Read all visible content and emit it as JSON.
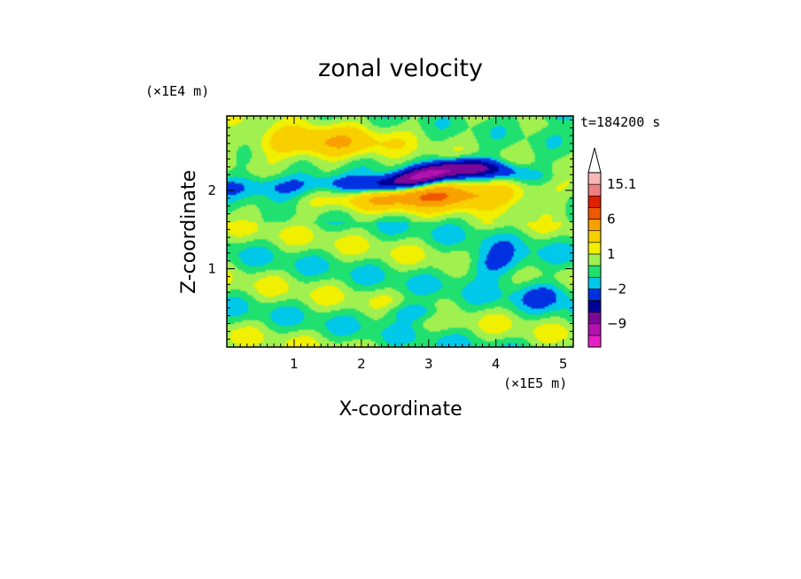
{
  "chart_data": {
    "type": "heatmap",
    "title": "zonal velocity",
    "xlabel": "X-coordinate",
    "ylabel": "Z-coordinate",
    "x_unit_label": "(×1E5 m)",
    "y_unit_label": "(×1E4 m)",
    "time_label": "t=184200 s",
    "xlim": [
      0,
      5.15
    ],
    "ylim": [
      0,
      2.95
    ],
    "x_ticks": [
      "1",
      "2",
      "3",
      "4",
      "5"
    ],
    "y_ticks": [
      "1",
      "2"
    ],
    "colorbar_labels": [
      "15.1",
      "6",
      "1",
      "−2",
      "−9"
    ],
    "colorbar": {
      "levels": [
        -15,
        -12,
        -9,
        -6,
        -4,
        -2,
        -1,
        0,
        1,
        2,
        4,
        6,
        9,
        12,
        15.1
      ],
      "colors": [
        "#e81ec8",
        "#b412b0",
        "#7c0898",
        "#000098",
        "#0030e0",
        "#00c8e8",
        "#20e070",
        "#a0f050",
        "#f0f000",
        "#f8d000",
        "#f8a000",
        "#f05800",
        "#e02000",
        "#f08080",
        "#f8b8b8"
      ],
      "extend_top": true
    },
    "field_structures": [
      {
        "kind": "jet",
        "sign": "negative",
        "x_range": [
          1.2,
          4.3
        ],
        "z_range": [
          2.2,
          2.6
        ],
        "peak": -10
      },
      {
        "kind": "band",
        "sign": "positive",
        "x_range": [
          1.8,
          4.8
        ],
        "z_range": [
          1.9,
          2.4
        ],
        "peak": 6
      },
      {
        "kind": "band",
        "sign": "negative",
        "x_range": [
          0,
          2.8
        ],
        "z_range": [
          1.9,
          2.2
        ],
        "peak": -2
      },
      {
        "kind": "band",
        "sign": "weak",
        "x_range": [
          0,
          5.15
        ],
        "z_range": [
          0,
          1.6
        ],
        "peak": 1
      }
    ]
  }
}
